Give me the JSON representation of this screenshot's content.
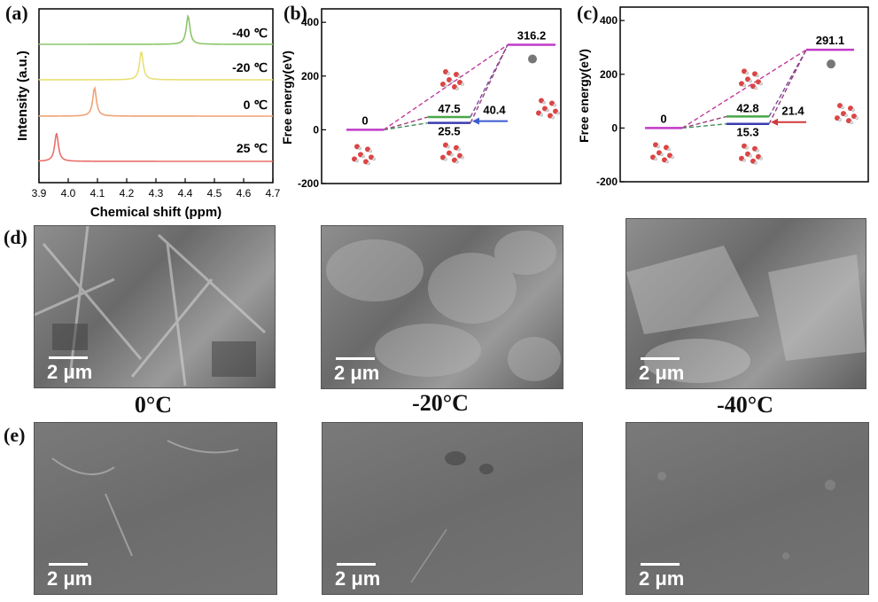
{
  "panel_labels": {
    "a": "(a)",
    "b": "(b)",
    "c": "(c)",
    "d": "(d)",
    "e": "(e)"
  },
  "chart_data": [
    {
      "type": "line",
      "id": "a",
      "xlabel": "Chemical shift (ppm)",
      "ylabel": "Intensity (a.u.)",
      "xlim": [
        3.9,
        4.7
      ],
      "xticks": [
        "3.9",
        "4.0",
        "4.1",
        "4.2",
        "4.3",
        "4.4",
        "4.5",
        "4.6",
        "4.7"
      ],
      "series": [
        {
          "name": "25 ℃",
          "peak": 3.96,
          "color": "#e8706a"
        },
        {
          "name": "0 ℃",
          "peak": 4.09,
          "color": "#f0a276"
        },
        {
          "name": "-20 ℃",
          "peak": 4.25,
          "color": "#e8e074"
        },
        {
          "name": "-40 ℃",
          "peak": 4.41,
          "color": "#8cc66a"
        }
      ]
    },
    {
      "type": "line",
      "id": "b",
      "ylabel": "Free energy(eV)",
      "ylim": [
        -200,
        450
      ],
      "yticks": [
        "400",
        "200",
        "0",
        "-200"
      ],
      "levels": [
        {
          "label": "0",
          "value": 0
        },
        {
          "label": "47.5",
          "value": 47.5
        },
        {
          "label": "25.5",
          "value": 25.5
        },
        {
          "label": "316.2",
          "value": 316.2
        }
      ],
      "arrow_label": "40.4"
    },
    {
      "type": "line",
      "id": "c",
      "ylabel": "Free energy(eV)",
      "ylim": [
        -200,
        450
      ],
      "yticks": [
        "400",
        "200",
        "0",
        "-200"
      ],
      "levels": [
        {
          "label": "0",
          "value": 0
        },
        {
          "label": "42.8",
          "value": 42.8
        },
        {
          "label": "15.3",
          "value": 15.3
        },
        {
          "label": "291.1",
          "value": 291.1
        }
      ],
      "arrow_label": "21.4"
    }
  ],
  "sem": {
    "scale": "2 μm",
    "temps": [
      "0°C",
      "-20°C",
      "-40°C"
    ]
  }
}
